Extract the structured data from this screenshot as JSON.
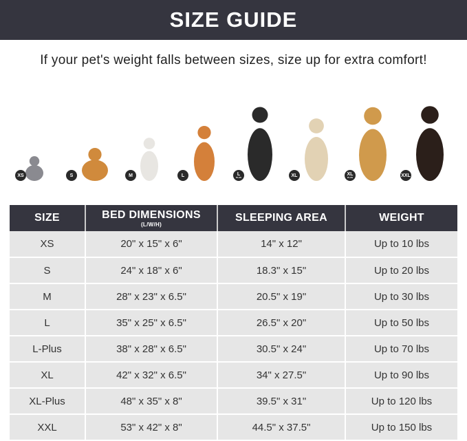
{
  "header": {
    "title": "SIZE GUIDE"
  },
  "subtitle": "If your pet's weight falls between sizes, size up for extra comfort!",
  "pets": [
    {
      "badge": "XS",
      "badge_sub": "",
      "color": "#8a8a90"
    },
    {
      "badge": "S",
      "badge_sub": "",
      "color": "#d08a3c"
    },
    {
      "badge": "M",
      "badge_sub": "",
      "color": "#e8e6e2"
    },
    {
      "badge": "L",
      "badge_sub": "",
      "color": "#d4803a"
    },
    {
      "badge": "L",
      "badge_sub": "PLUS",
      "color": "#2a2a2a"
    },
    {
      "badge": "XL",
      "badge_sub": "",
      "color": "#e2d2b4"
    },
    {
      "badge": "XL",
      "badge_sub": "PLUS",
      "color": "#d09a4c"
    },
    {
      "badge": "XXL",
      "badge_sub": "",
      "color": "#2b1f1a"
    }
  ],
  "table": {
    "headers": [
      "SIZE",
      "BED DIMENSIONS",
      "SLEEPING AREA",
      "WEIGHT"
    ],
    "header_unit": "(L/W/H)",
    "rows": [
      [
        "XS",
        "20\" x 15\" x 6\"",
        "14\" x 12\"",
        "Up to 10 lbs"
      ],
      [
        "S",
        "24\" x 18\" x 6\"",
        "18.3\" x 15\"",
        "Up to 20 lbs"
      ],
      [
        "M",
        "28\" x 23\" x 6.5\"",
        "20.5\" x 19\"",
        "Up to 30 lbs"
      ],
      [
        "L",
        "35\" x 25\" x 6.5\"",
        "26.5\" x 20\"",
        "Up to 50 lbs"
      ],
      [
        "L-Plus",
        "38\" x 28\" x 6.5\"",
        "30.5\" x 24\"",
        "Up to 70 lbs"
      ],
      [
        "XL",
        "42\" x 32\" x 6.5\"",
        "34\" x 27.5\"",
        "Up to 90 lbs"
      ],
      [
        "XL-Plus",
        "48\" x 35\" x 8\"",
        "39.5\" x 31\"",
        "Up to 120 lbs"
      ],
      [
        "XXL",
        "53\" x 42\" x 8\"",
        "44.5\" x 37.5\"",
        "Up to 150 lbs"
      ]
    ]
  }
}
